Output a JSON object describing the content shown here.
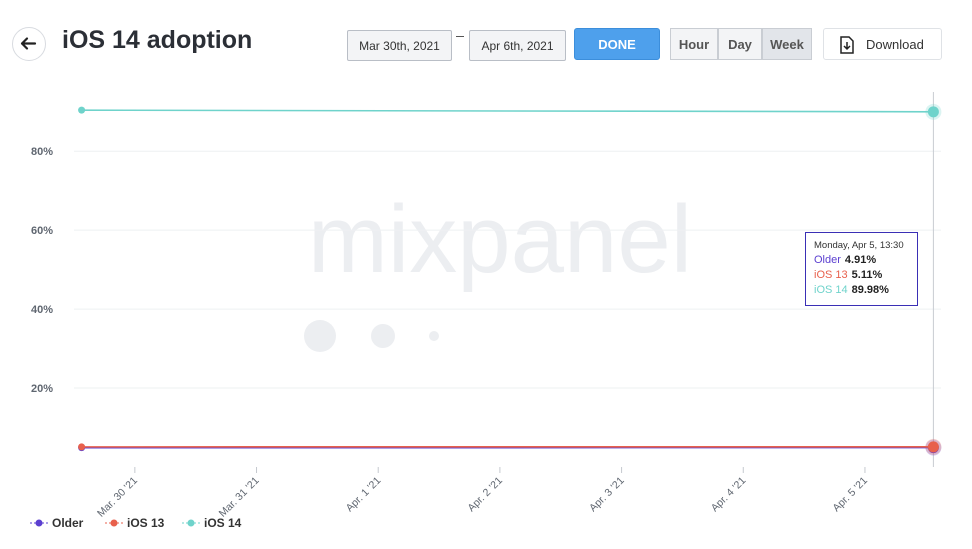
{
  "header": {
    "title": "iOS 14 adoption",
    "start_date": "Mar 30th, 2021",
    "end_date": "Apr 6th, 2021",
    "done": "DONE",
    "units": [
      "Hour",
      "Day",
      "Week"
    ],
    "selected_unit": 2,
    "download": "Download"
  },
  "watermark": "mixpanel",
  "chart_data": {
    "type": "line",
    "x": [
      "2021-03-29 13:30",
      "2021-04-05 13:30"
    ],
    "xlim": [
      "2021-03-29 12:00",
      "2021-04-05 15:00"
    ],
    "xticks": [
      {
        "value": "2021-03-30",
        "label": "Mar. 30 '21"
      },
      {
        "value": "2021-03-31",
        "label": "Mar. 31 '21"
      },
      {
        "value": "2021-04-01",
        "label": "Apr. 1 '21"
      },
      {
        "value": "2021-04-02",
        "label": "Apr. 2 '21"
      },
      {
        "value": "2021-04-03",
        "label": "Apr. 3 '21"
      },
      {
        "value": "2021-04-04",
        "label": "Apr. 4 '21"
      },
      {
        "value": "2021-04-05",
        "label": "Apr. 5 '21"
      }
    ],
    "ylim": [
      0,
      95
    ],
    "yticks": [
      {
        "value": 20,
        "label": "20%"
      },
      {
        "value": 40,
        "label": "40%"
      },
      {
        "value": 60,
        "label": "60%"
      },
      {
        "value": 80,
        "label": "80%"
      }
    ],
    "grid": true,
    "series": [
      {
        "name": "Older",
        "color": "#5b3fd0",
        "values": [
          4.9,
          4.91
        ],
        "value_labels": [
          null,
          "4.91%"
        ]
      },
      {
        "name": "iOS 13",
        "color": "#e8604c",
        "values": [
          5.1,
          5.11
        ],
        "value_labels": [
          null,
          "5.11%"
        ]
      },
      {
        "name": "iOS 14",
        "color": "#6fd3cb",
        "values": [
          90.4,
          89.98
        ],
        "value_labels": [
          null,
          "89.98%"
        ]
      }
    ],
    "tooltip": {
      "title": "Monday, Apr 5, 13:30",
      "point": 1
    }
  }
}
